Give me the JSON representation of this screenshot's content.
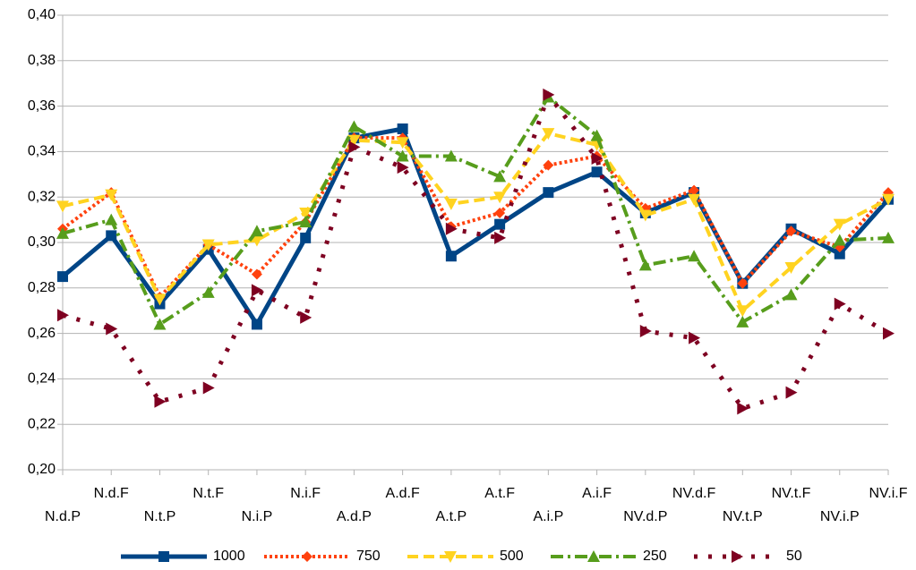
{
  "chart_data": {
    "type": "line",
    "categories": [
      "N.d.P",
      "N.d.F",
      "N.t.P",
      "N.t.F",
      "N.i.P",
      "N.i.F",
      "A.d.P",
      "A.d.F",
      "A.t.P",
      "A.t.F",
      "A.i.P",
      "A.i.F",
      "NV.d.P",
      "NV.d.F",
      "NV.t.P",
      "NV.t.F",
      "NV.i.P",
      "NV.i.F"
    ],
    "series": [
      {
        "name": "1000",
        "color": "#004586",
        "values": [
          0.285,
          0.303,
          0.273,
          0.297,
          0.264,
          0.302,
          0.346,
          0.35,
          0.294,
          0.308,
          0.322,
          0.331,
          0.313,
          0.322,
          0.282,
          0.306,
          0.295,
          0.319
        ]
      },
      {
        "name": "750",
        "color": "#ff420e",
        "values": [
          0.306,
          0.322,
          0.276,
          0.299,
          0.286,
          0.309,
          0.346,
          0.346,
          0.307,
          0.313,
          0.334,
          0.338,
          0.315,
          0.323,
          0.282,
          0.305,
          0.298,
          0.322
        ]
      },
      {
        "name": "500",
        "color": "#ffd320",
        "values": [
          0.316,
          0.321,
          0.275,
          0.299,
          0.301,
          0.313,
          0.345,
          0.344,
          0.317,
          0.32,
          0.348,
          0.343,
          0.312,
          0.319,
          0.27,
          0.289,
          0.308,
          0.319
        ]
      },
      {
        "name": "250",
        "color": "#579d1c",
        "values": [
          0.304,
          0.31,
          0.264,
          0.278,
          0.305,
          0.309,
          0.351,
          0.338,
          0.338,
          0.329,
          0.364,
          0.347,
          0.29,
          0.294,
          0.265,
          0.277,
          0.301,
          0.302
        ]
      },
      {
        "name": "50",
        "color": "#7e0021",
        "values": [
          0.268,
          0.262,
          0.23,
          0.236,
          0.279,
          0.267,
          0.342,
          0.333,
          0.306,
          0.302,
          0.365,
          0.337,
          0.261,
          0.258,
          0.227,
          0.234,
          0.273,
          0.26
        ]
      }
    ],
    "ylim": [
      0.2,
      0.4
    ],
    "yticks": [
      {
        "value": 0.2,
        "label": "0,20"
      },
      {
        "value": 0.22,
        "label": "0,22"
      },
      {
        "value": 0.24,
        "label": "0,24"
      },
      {
        "value": 0.26,
        "label": "0,26"
      },
      {
        "value": 0.28,
        "label": "0,28"
      },
      {
        "value": 0.3,
        "label": "0,30"
      },
      {
        "value": 0.32,
        "label": "0,32"
      },
      {
        "value": 0.34,
        "label": "0,34"
      },
      {
        "value": 0.36,
        "label": "0,36"
      },
      {
        "value": 0.38,
        "label": "0,38"
      },
      {
        "value": 0.4,
        "label": "0,40"
      }
    ],
    "grid": true,
    "legend": "bottom"
  }
}
